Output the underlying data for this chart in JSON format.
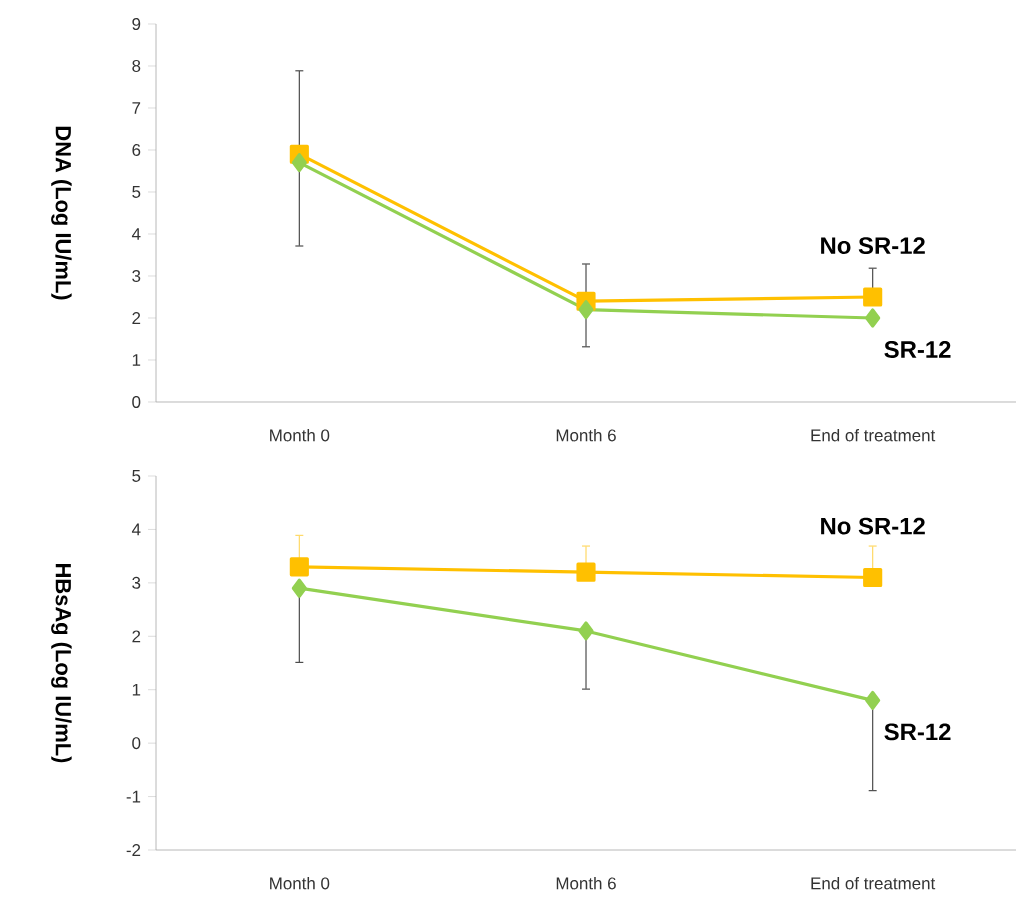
{
  "chart_data": [
    {
      "type": "line",
      "ylabel": "DNA (Log IU/mL)",
      "categories": [
        "Month 0",
        "Month 6",
        "End of treatment"
      ],
      "ylim": [
        0,
        9
      ],
      "yticks": [
        0,
        1,
        2,
        3,
        4,
        5,
        6,
        7,
        8,
        9
      ],
      "grid": false,
      "line_style": "solid",
      "series": [
        {
          "name": "No SR-12",
          "color": "#ffc000",
          "marker": "square",
          "values": [
            5.9,
            2.4,
            2.5
          ],
          "errors": [
            null,
            null,
            [
              2.5,
              3.2
            ]
          ]
        },
        {
          "name": "SR-12",
          "color": "#92d050",
          "marker": "diamond",
          "values": [
            5.7,
            2.2,
            2.0
          ],
          "errors": [
            [
              3.7,
              7.9
            ],
            [
              1.3,
              3.3
            ],
            null
          ]
        }
      ]
    },
    {
      "type": "line",
      "ylabel": "HBsAg (Log IU/mL)",
      "categories": [
        "Month 0",
        "Month 6",
        "End of treatment"
      ],
      "ylim": [
        -2,
        5
      ],
      "yticks": [
        -2,
        -1,
        0,
        1,
        2,
        3,
        4,
        5
      ],
      "grid": false,
      "line_style": "solid",
      "series": [
        {
          "name": "No SR-12",
          "color": "#ffc000",
          "marker": "square",
          "values": [
            3.3,
            3.2,
            3.1
          ],
          "errors": [
            [
              3.3,
              3.9
            ],
            [
              3.2,
              3.7
            ],
            [
              3.1,
              3.7
            ]
          ]
        },
        {
          "name": "SR-12",
          "color": "#92d050",
          "marker": "diamond",
          "values": [
            2.9,
            2.1,
            0.8
          ],
          "errors": [
            [
              1.5,
              2.9
            ],
            [
              1.0,
              2.1
            ],
            [
              -0.9,
              0.8
            ]
          ]
        }
      ]
    }
  ]
}
